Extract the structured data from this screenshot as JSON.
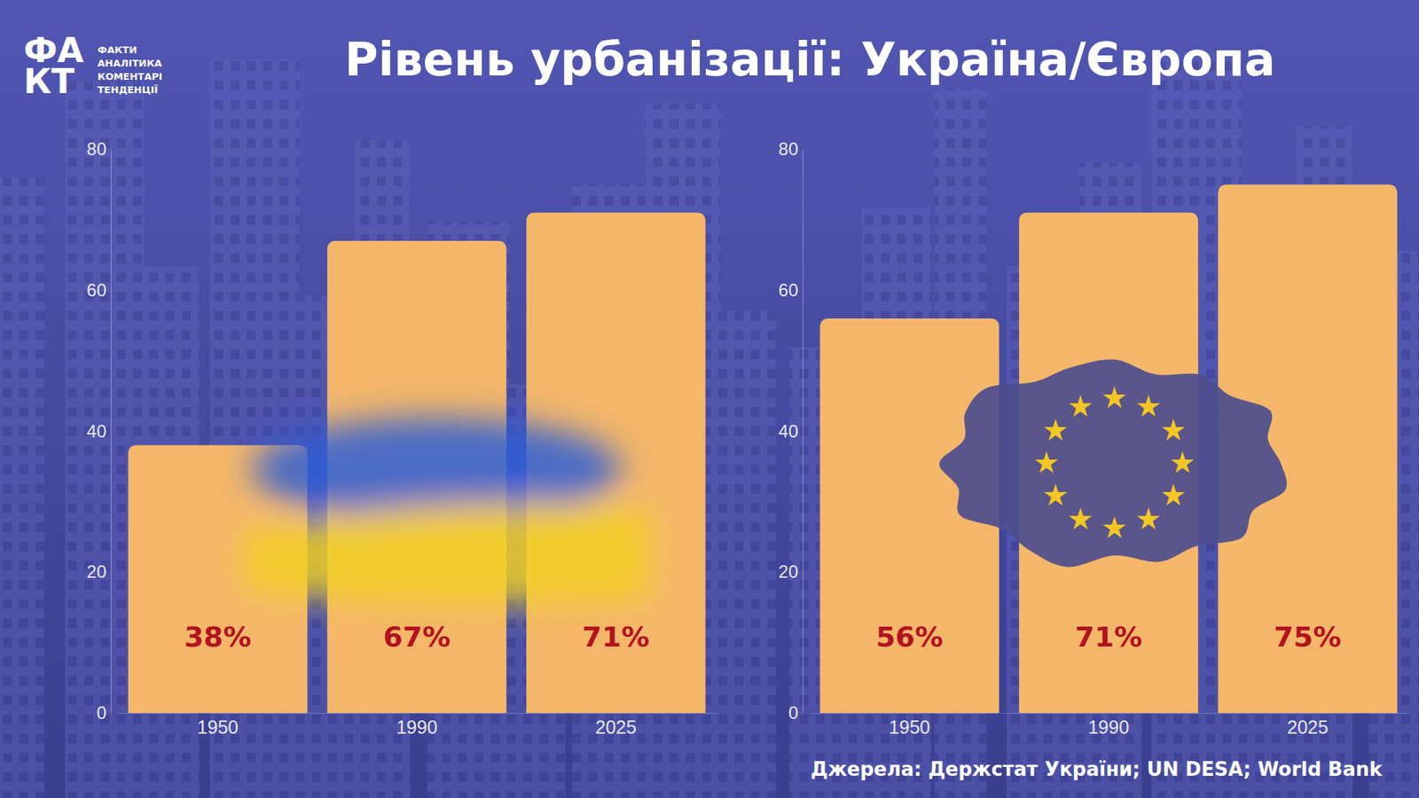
{
  "title": "Рівень урбанізації: Україна/Європа",
  "logo": {
    "mark": [
      "ФА",
      "КТ"
    ],
    "lines": [
      "ФАКТИ",
      "АНАЛІТИКА",
      "КОМЕНТАРІ",
      "ТЕНДЕНЦІЇ"
    ]
  },
  "source": "Джерела: Держстат України; UN DESA; World Bank",
  "chart_data": [
    {
      "type": "bar",
      "categories": [
        "1950",
        "1990",
        "2025"
      ],
      "values": [
        38,
        67,
        71
      ],
      "value_labels": [
        "38%",
        "67%",
        "71%"
      ],
      "data_labels": true,
      "color": "#f4b76a",
      "ylim": [
        0,
        80
      ],
      "yticks": [
        0,
        20,
        40,
        60,
        80
      ],
      "grid": false
    },
    {
      "type": "bar",
      "categories": [
        "1950",
        "1990",
        "2025"
      ],
      "values": [
        56,
        71,
        75
      ],
      "value_labels": [
        "56%",
        "71%",
        "75%"
      ],
      "data_labels": true,
      "color": "#f4b76a",
      "ylim": [
        0,
        80
      ],
      "yticks": [
        0,
        20,
        40,
        60,
        80
      ],
      "grid": false
    }
  ]
}
